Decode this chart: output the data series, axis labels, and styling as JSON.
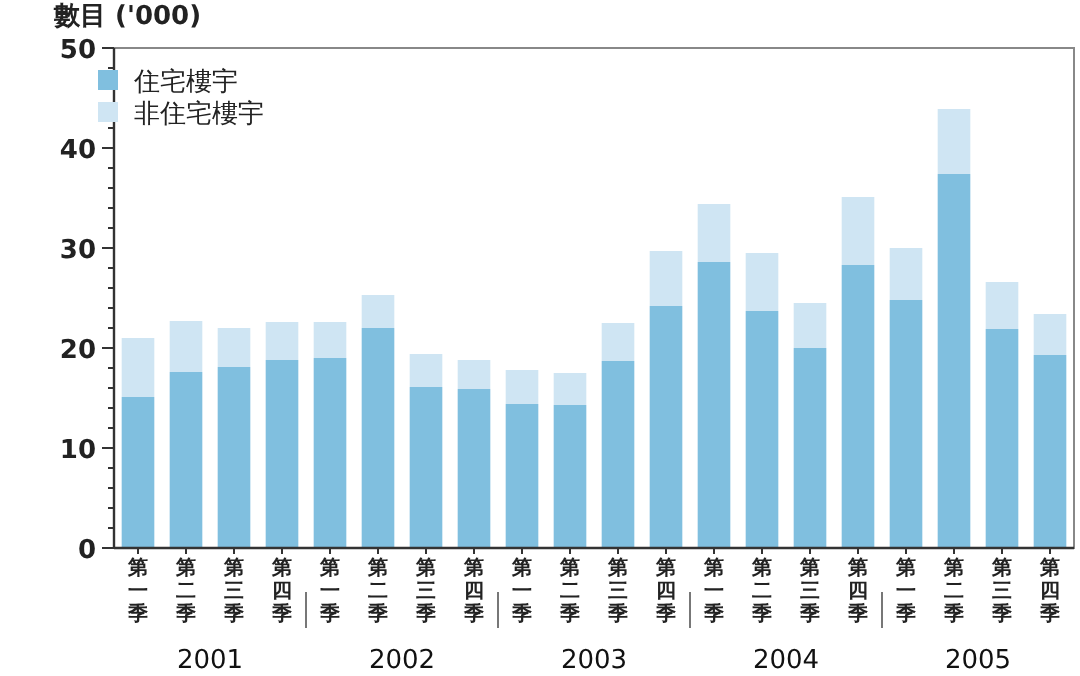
{
  "chart_data": {
    "type": "bar",
    "stacked": true,
    "ylabel": "數目 ('000)",
    "categories": [
      "第一季",
      "第二季",
      "第三季",
      "第四季",
      "第一季",
      "第二季",
      "第三季",
      "第四季",
      "第一季",
      "第二季",
      "第三季",
      "第四季",
      "第一季",
      "第二季",
      "第三季",
      "第四季",
      "第一季",
      "第二季",
      "第三季",
      "第四季"
    ],
    "annotations": [
      "2001",
      "2002",
      "2003",
      "2004",
      "2005"
    ],
    "series": [
      {
        "name": "住宅樓宇",
        "color": "#80bfdf",
        "values": [
          15.1,
          17.6,
          18.1,
          18.8,
          19.0,
          22.0,
          16.1,
          15.9,
          14.4,
          14.3,
          18.7,
          24.2,
          28.6,
          23.7,
          20.0,
          28.3,
          24.8,
          37.4,
          21.9,
          19.3
        ]
      },
      {
        "name": "非住宅樓宇",
        "color": "#cfe5f3",
        "values": [
          5.9,
          5.1,
          3.9,
          3.8,
          3.6,
          3.3,
          3.3,
          2.9,
          3.4,
          3.2,
          3.8,
          5.5,
          5.8,
          5.8,
          4.5,
          6.8,
          5.2,
          6.5,
          4.7,
          4.1
        ]
      }
    ],
    "ylim": [
      0,
      50
    ],
    "yticks": [
      0,
      10,
      20,
      30,
      40,
      50
    ],
    "legend": "top left",
    "grid": false
  }
}
